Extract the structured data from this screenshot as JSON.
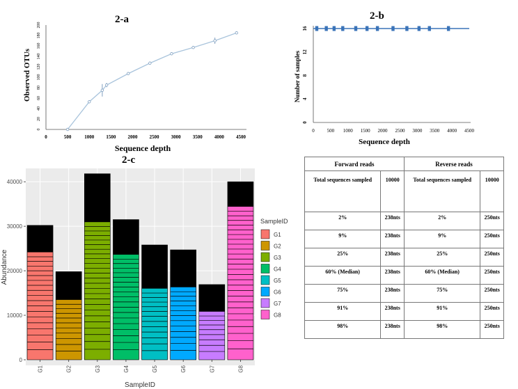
{
  "charts": {
    "a": {
      "title": "2-a",
      "xlabel": "Sequence depth",
      "ylabel": "Observed OTUs",
      "x_ticks": [
        0,
        500,
        1000,
        1500,
        2000,
        2500,
        3000,
        3500,
        4000,
        4500
      ],
      "y_ticks": [
        0,
        20,
        40,
        60,
        80,
        100,
        120,
        140,
        160,
        180,
        200
      ],
      "colors": {
        "line": "#a9c4dc",
        "marker": "#7f9fc0"
      }
    },
    "b": {
      "title": "2-b",
      "xlabel": "Sequence depth",
      "ylabel": "Number of samples",
      "x_ticks": [
        0,
        500,
        1000,
        1500,
        2000,
        2500,
        3000,
        3500,
        4000,
        4500
      ],
      "y_ticks": [
        0,
        4,
        8,
        12,
        16
      ],
      "colors": {
        "line": "#3a73b8",
        "marker": "#3a73b8"
      }
    },
    "c": {
      "title": "2-c",
      "xlabel": "SampleID",
      "ylabel": "Abundance",
      "y_ticks": [
        0,
        10000,
        20000,
        30000,
        40000
      ],
      "y_tick_labels": [
        "0",
        "10000",
        "20000",
        "30000",
        "40000"
      ],
      "legend_title": "SampleID"
    }
  },
  "chart_data": [
    {
      "type": "line",
      "x": [
        500,
        1000,
        1300,
        1400,
        1900,
        2400,
        2900,
        3400,
        3900,
        4400
      ],
      "y": [
        0,
        53,
        75,
        85,
        107,
        127,
        145,
        157,
        170,
        185
      ],
      "err": [
        0,
        0,
        12,
        4,
        0,
        3,
        0,
        0,
        6,
        0
      ],
      "xlim": [
        0,
        4500
      ],
      "ylim": [
        0,
        200
      ]
    },
    {
      "type": "scatter",
      "x": [
        100,
        375,
        600,
        850,
        1225,
        1550,
        1850,
        2300,
        2700,
        3050,
        3350,
        3900
      ],
      "y": [
        16,
        16,
        16,
        16,
        16,
        16,
        16,
        16,
        16,
        16,
        16,
        16
      ],
      "xlim": [
        0,
        4500
      ],
      "ylim": [
        0,
        16
      ]
    },
    {
      "type": "bar",
      "categories": [
        "G1",
        "G2",
        "G3",
        "G4",
        "G5",
        "G6",
        "G7",
        "G8"
      ],
      "values": [
        30200,
        19800,
        41800,
        31500,
        25800,
        24700,
        16900,
        40000
      ],
      "colors": [
        "#f8766d",
        "#cd9600",
        "#7cae00",
        "#00be67",
        "#00bfc4",
        "#00a9ff",
        "#c77cff",
        "#ff61cc"
      ],
      "ylim": [
        0,
        43000
      ]
    },
    {
      "type": "table",
      "header": [
        "Forward reads",
        "Reverse reads"
      ],
      "subheader": [
        "Total sequences sampled",
        "10000",
        "Total sequences sampled",
        "10000"
      ],
      "rows": [
        [
          "2%",
          "238nts",
          "2%",
          "250nts"
        ],
        [
          "9%",
          "238nts",
          "9%",
          "250nts"
        ],
        [
          "25%",
          "238nts",
          "25%",
          "250nts"
        ],
        [
          "60% (Median)",
          "238nts",
          "60% (Median)",
          "250nts"
        ],
        [
          "75%",
          "238nts",
          "75%",
          "250nts"
        ],
        [
          "91%",
          "238nts",
          "91%",
          "250nts"
        ],
        [
          "98%",
          "238nts",
          "98%",
          "250nts"
        ]
      ]
    }
  ]
}
